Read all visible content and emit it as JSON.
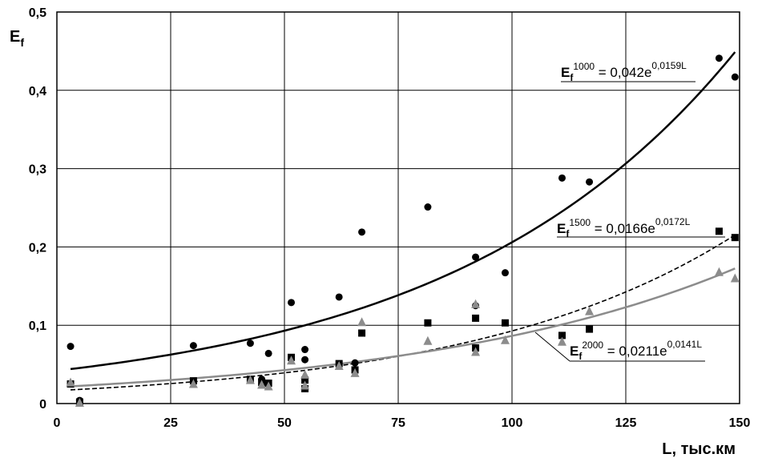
{
  "chart_data": {
    "type": "scatter",
    "title": "",
    "xlabel": "L, тыс.км",
    "ylabel": "E",
    "ylabel_sub": "f",
    "xlim": [
      0,
      150
    ],
    "ylim": [
      0,
      0.5
    ],
    "x_ticks": [
      0,
      25,
      50,
      75,
      100,
      125,
      150
    ],
    "x_tick_labels": [
      "0",
      "25",
      "50",
      "75",
      "100",
      "125",
      "150"
    ],
    "y_ticks": [
      0,
      0.1,
      0.2,
      0.3,
      0.4,
      0.5
    ],
    "y_tick_labels": [
      "0",
      "0,1",
      "0,2",
      "0,3",
      "0,4",
      "0,5"
    ],
    "grid": true,
    "legend": "none",
    "series": [
      {
        "marker": "circle",
        "color": "#000000",
        "points": [
          [
            3,
            0.073
          ],
          [
            5,
            0.004
          ],
          [
            30,
            0.074
          ],
          [
            42.5,
            0.077
          ],
          [
            45,
            0.031
          ],
          [
            46.5,
            0.064
          ],
          [
            51.5,
            0.129
          ],
          [
            54.5,
            0.069
          ],
          [
            54.5,
            0.056
          ],
          [
            62,
            0.136
          ],
          [
            65.5,
            0.052
          ],
          [
            67,
            0.219
          ],
          [
            81.5,
            0.251
          ],
          [
            92,
            0.187
          ],
          [
            92,
            0.125
          ],
          [
            98.5,
            0.167
          ],
          [
            111,
            0.288
          ],
          [
            117,
            0.283
          ],
          [
            145.5,
            0.441
          ],
          [
            149,
            0.417
          ]
        ]
      },
      {
        "marker": "square",
        "color": "#000000",
        "points": [
          [
            3,
            0.025
          ],
          [
            5,
            0.002
          ],
          [
            30,
            0.029
          ],
          [
            42.5,
            0.031
          ],
          [
            45,
            0.027
          ],
          [
            46.5,
            0.026
          ],
          [
            51.5,
            0.059
          ],
          [
            54.5,
            0.03
          ],
          [
            54.5,
            0.019
          ],
          [
            62,
            0.051
          ],
          [
            65.5,
            0.043
          ],
          [
            67,
            0.09
          ],
          [
            81.5,
            0.103
          ],
          [
            92,
            0.109
          ],
          [
            92,
            0.071
          ],
          [
            98.5,
            0.103
          ],
          [
            111,
            0.087
          ],
          [
            117,
            0.095
          ],
          [
            145.5,
            0.22
          ],
          [
            149,
            0.212
          ]
        ]
      },
      {
        "marker": "triangle",
        "color": "#8c8c8c",
        "points": [
          [
            3,
            0.027
          ],
          [
            5,
            0.001
          ],
          [
            30,
            0.025
          ],
          [
            42.5,
            0.03
          ],
          [
            45,
            0.024
          ],
          [
            46.5,
            0.022
          ],
          [
            51.5,
            0.055
          ],
          [
            54.5,
            0.037
          ],
          [
            54.5,
            0.023
          ],
          [
            62,
            0.048
          ],
          [
            65.5,
            0.039
          ],
          [
            67,
            0.104
          ],
          [
            81.5,
            0.08
          ],
          [
            92,
            0.127
          ],
          [
            92,
            0.066
          ],
          [
            98.5,
            0.081
          ],
          [
            111,
            0.079
          ],
          [
            117,
            0.118
          ],
          [
            145.5,
            0.168
          ],
          [
            149,
            0.16
          ]
        ]
      }
    ],
    "trendlines": [
      {
        "a": 0.042,
        "b": 0.0159,
        "x_range": [
          3,
          149
        ],
        "color": "#000000",
        "style": "solid",
        "width": 2.5,
        "eq_main": "E",
        "eq_sub": "f",
        "eq_sup": "1000",
        "eq_mid": " = 0,042e",
        "eq_exp": "0,0159L"
      },
      {
        "a": 0.0166,
        "b": 0.0172,
        "x_range": [
          3,
          149
        ],
        "color": "#000000",
        "style": "dashed",
        "width": 1.6,
        "eq_main": "E",
        "eq_sub": "f",
        "eq_sup": "1500",
        "eq_mid": " = 0,0166e",
        "eq_exp": "0,0172L"
      },
      {
        "a": 0.0211,
        "b": 0.0141,
        "x_range": [
          3,
          149
        ],
        "color": "#8c8c8c",
        "style": "solid",
        "width": 2.5,
        "eq_main": "E",
        "eq_sub": "f",
        "eq_sup": "2000",
        "eq_mid": " = 0,0211e",
        "eq_exp": "0,0141L"
      }
    ]
  }
}
